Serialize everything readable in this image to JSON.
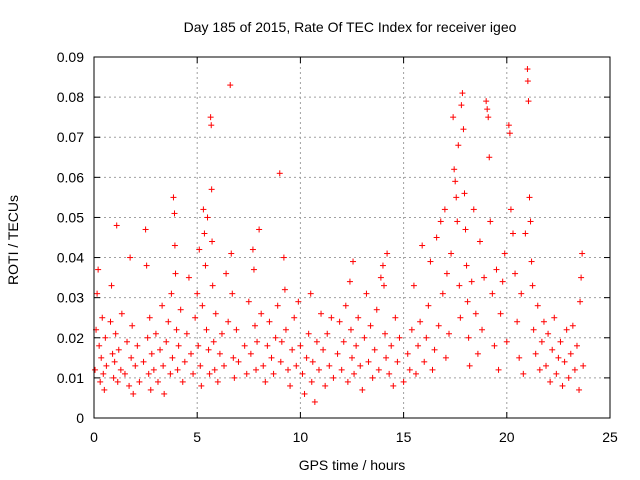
{
  "chart_data": {
    "type": "scatter",
    "title": "Day 185 of 2015, Rate Of TEC Index for receiver igeo",
    "xlabel": "GPS time / hours",
    "ylabel": "ROTI / TECUs",
    "xlim": [
      0,
      25
    ],
    "ylim": [
      0,
      0.09
    ],
    "xticks": [
      0,
      5,
      10,
      15,
      20,
      25
    ],
    "xtick_labels": [
      "0",
      "5",
      "10",
      "15",
      "20",
      "25"
    ],
    "yticks": [
      0,
      0.01,
      0.02,
      0.03,
      0.04,
      0.05,
      0.06,
      0.07,
      0.08,
      0.09
    ],
    "ytick_labels": [
      "0",
      "0.01",
      "0.02",
      "0.03",
      "0.04",
      "0.05",
      "0.06",
      "0.07",
      "0.08",
      "0.09"
    ],
    "grid": true,
    "marker": "+",
    "color": "#ff0000",
    "series": [
      {
        "name": "ROTI",
        "points": [
          [
            0.05,
            0.012
          ],
          [
            0.1,
            0.022
          ],
          [
            0.15,
            0.031
          ],
          [
            0.2,
            0.037
          ],
          [
            0.25,
            0.018
          ],
          [
            0.3,
            0.009
          ],
          [
            0.35,
            0.015
          ],
          [
            0.4,
            0.025
          ],
          [
            0.45,
            0.011
          ],
          [
            0.5,
            0.007
          ],
          [
            0.55,
            0.02
          ],
          [
            0.6,
            0.013
          ],
          [
            0.8,
            0.024
          ],
          [
            0.85,
            0.033
          ],
          [
            0.9,
            0.016
          ],
          [
            0.95,
            0.01
          ],
          [
            1.0,
            0.014
          ],
          [
            1.05,
            0.021
          ],
          [
            1.1,
            0.048
          ],
          [
            1.15,
            0.009
          ],
          [
            1.2,
            0.017
          ],
          [
            1.3,
            0.012
          ],
          [
            1.35,
            0.026
          ],
          [
            1.5,
            0.011
          ],
          [
            1.6,
            0.019
          ],
          [
            1.7,
            0.008
          ],
          [
            1.75,
            0.04
          ],
          [
            1.8,
            0.015
          ],
          [
            1.85,
            0.023
          ],
          [
            1.9,
            0.006
          ],
          [
            2.0,
            0.013
          ],
          [
            2.1,
            0.018
          ],
          [
            2.2,
            0.009
          ],
          [
            2.4,
            0.014
          ],
          [
            2.5,
            0.047
          ],
          [
            2.55,
            0.038
          ],
          [
            2.6,
            0.02
          ],
          [
            2.65,
            0.011
          ],
          [
            2.7,
            0.025
          ],
          [
            2.75,
            0.007
          ],
          [
            2.8,
            0.016
          ],
          [
            2.9,
            0.012
          ],
          [
            3.0,
            0.021
          ],
          [
            3.1,
            0.009
          ],
          [
            3.2,
            0.017
          ],
          [
            3.3,
            0.028
          ],
          [
            3.35,
            0.013
          ],
          [
            3.4,
            0.006
          ],
          [
            3.5,
            0.019
          ],
          [
            3.6,
            0.024
          ],
          [
            3.7,
            0.011
          ],
          [
            3.75,
            0.031
          ],
          [
            3.8,
            0.015
          ],
          [
            3.85,
            0.055
          ],
          [
            3.9,
            0.051
          ],
          [
            3.92,
            0.043
          ],
          [
            3.95,
            0.036
          ],
          [
            4.0,
            0.022
          ],
          [
            4.05,
            0.012
          ],
          [
            4.1,
            0.018
          ],
          [
            4.2,
            0.027
          ],
          [
            4.3,
            0.009
          ],
          [
            4.4,
            0.014
          ],
          [
            4.5,
            0.021
          ],
          [
            4.6,
            0.035
          ],
          [
            4.7,
            0.016
          ],
          [
            4.8,
            0.011
          ],
          [
            4.9,
            0.025
          ],
          [
            5.0,
            0.031
          ],
          [
            5.05,
            0.018
          ],
          [
            5.1,
            0.042
          ],
          [
            5.15,
            0.013
          ],
          [
            5.2,
            0.008
          ],
          [
            5.25,
            0.028
          ],
          [
            5.3,
            0.052
          ],
          [
            5.35,
            0.046
          ],
          [
            5.4,
            0.038
          ],
          [
            5.45,
            0.022
          ],
          [
            5.5,
            0.05
          ],
          [
            5.55,
            0.017
          ],
          [
            5.6,
            0.011
          ],
          [
            5.65,
            0.075
          ],
          [
            5.68,
            0.073
          ],
          [
            5.7,
            0.057
          ],
          [
            5.72,
            0.044
          ],
          [
            5.75,
            0.033
          ],
          [
            5.8,
            0.019
          ],
          [
            5.85,
            0.012
          ],
          [
            5.9,
            0.026
          ],
          [
            6.0,
            0.009
          ],
          [
            6.1,
            0.016
          ],
          [
            6.2,
            0.021
          ],
          [
            6.3,
            0.013
          ],
          [
            6.4,
            0.036
          ],
          [
            6.5,
            0.024
          ],
          [
            6.6,
            0.083
          ],
          [
            6.65,
            0.041
          ],
          [
            6.7,
            0.031
          ],
          [
            6.75,
            0.015
          ],
          [
            6.8,
            0.01
          ],
          [
            6.9,
            0.022
          ],
          [
            7.0,
            0.014
          ],
          [
            7.3,
            0.018
          ],
          [
            7.4,
            0.011
          ],
          [
            7.5,
            0.029
          ],
          [
            7.6,
            0.016
          ],
          [
            7.7,
            0.042
          ],
          [
            7.75,
            0.037
          ],
          [
            7.8,
            0.023
          ],
          [
            7.85,
            0.012
          ],
          [
            7.9,
            0.019
          ],
          [
            8.0,
            0.047
          ],
          [
            8.1,
            0.026
          ],
          [
            8.2,
            0.013
          ],
          [
            8.3,
            0.009
          ],
          [
            8.4,
            0.018
          ],
          [
            8.5,
            0.024
          ],
          [
            8.6,
            0.015
          ],
          [
            8.7,
            0.011
          ],
          [
            8.8,
            0.02
          ],
          [
            8.9,
            0.028
          ],
          [
            9.0,
            0.061
          ],
          [
            9.05,
            0.014
          ],
          [
            9.1,
            0.019
          ],
          [
            9.2,
            0.04
          ],
          [
            9.25,
            0.032
          ],
          [
            9.3,
            0.022
          ],
          [
            9.4,
            0.012
          ],
          [
            9.5,
            0.008
          ],
          [
            9.6,
            0.017
          ],
          [
            9.7,
            0.025
          ],
          [
            9.8,
            0.013
          ],
          [
            9.9,
            0.029
          ],
          [
            10.0,
            0.018
          ],
          [
            10.1,
            0.011
          ],
          [
            10.2,
            0.006
          ],
          [
            10.3,
            0.015
          ],
          [
            10.4,
            0.021
          ],
          [
            10.5,
            0.031
          ],
          [
            10.55,
            0.009
          ],
          [
            10.6,
            0.014
          ],
          [
            10.7,
            0.004
          ],
          [
            10.8,
            0.019
          ],
          [
            10.9,
            0.012
          ],
          [
            11.0,
            0.026
          ],
          [
            11.1,
            0.017
          ],
          [
            11.2,
            0.008
          ],
          [
            11.3,
            0.021
          ],
          [
            11.4,
            0.013
          ],
          [
            11.5,
            0.025
          ],
          [
            11.6,
            0.01
          ],
          [
            11.8,
            0.016
          ],
          [
            11.9,
            0.024
          ],
          [
            12.0,
            0.012
          ],
          [
            12.1,
            0.019
          ],
          [
            12.2,
            0.028
          ],
          [
            12.3,
            0.009
          ],
          [
            12.4,
            0.034
          ],
          [
            12.45,
            0.022
          ],
          [
            12.5,
            0.015
          ],
          [
            12.55,
            0.039
          ],
          [
            12.6,
            0.011
          ],
          [
            12.7,
            0.018
          ],
          [
            12.8,
            0.025
          ],
          [
            12.9,
            0.013
          ],
          [
            13.0,
            0.007
          ],
          [
            13.1,
            0.02
          ],
          [
            13.2,
            0.031
          ],
          [
            13.3,
            0.014
          ],
          [
            13.4,
            0.023
          ],
          [
            13.5,
            0.01
          ],
          [
            13.6,
            0.017
          ],
          [
            13.7,
            0.027
          ],
          [
            13.8,
            0.012
          ],
          [
            13.9,
            0.035
          ],
          [
            14.0,
            0.038
          ],
          [
            14.05,
            0.033
          ],
          [
            14.1,
            0.021
          ],
          [
            14.15,
            0.015
          ],
          [
            14.2,
            0.041
          ],
          [
            14.3,
            0.011
          ],
          [
            14.4,
            0.018
          ],
          [
            14.5,
            0.008
          ],
          [
            14.6,
            0.025
          ],
          [
            14.7,
            0.014
          ],
          [
            14.8,
            0.02
          ],
          [
            15.0,
            0.009
          ],
          [
            15.2,
            0.016
          ],
          [
            15.3,
            0.012
          ],
          [
            15.4,
            0.022
          ],
          [
            15.5,
            0.033
          ],
          [
            15.6,
            0.011
          ],
          [
            15.7,
            0.018
          ],
          [
            15.8,
            0.024
          ],
          [
            15.9,
            0.043
          ],
          [
            16.0,
            0.014
          ],
          [
            16.1,
            0.02
          ],
          [
            16.2,
            0.028
          ],
          [
            16.3,
            0.039
          ],
          [
            16.4,
            0.012
          ],
          [
            16.5,
            0.017
          ],
          [
            16.6,
            0.045
          ],
          [
            16.7,
            0.023
          ],
          [
            16.8,
            0.049
          ],
          [
            16.9,
            0.031
          ],
          [
            17.0,
            0.052
          ],
          [
            17.05,
            0.015
          ],
          [
            17.1,
            0.036
          ],
          [
            17.2,
            0.021
          ],
          [
            17.3,
            0.041
          ],
          [
            17.4,
            0.075
          ],
          [
            17.45,
            0.062
          ],
          [
            17.5,
            0.059
          ],
          [
            17.55,
            0.055
          ],
          [
            17.6,
            0.049
          ],
          [
            17.65,
            0.068
          ],
          [
            17.7,
            0.033
          ],
          [
            17.75,
            0.025
          ],
          [
            17.8,
            0.078
          ],
          [
            17.85,
            0.081
          ],
          [
            17.9,
            0.072
          ],
          [
            17.95,
            0.056
          ],
          [
            18.0,
            0.047
          ],
          [
            18.05,
            0.038
          ],
          [
            18.1,
            0.029
          ],
          [
            18.15,
            0.02
          ],
          [
            18.2,
            0.013
          ],
          [
            18.3,
            0.034
          ],
          [
            18.4,
            0.052
          ],
          [
            18.5,
            0.026
          ],
          [
            18.6,
            0.016
          ],
          [
            18.7,
            0.044
          ],
          [
            18.8,
            0.022
          ],
          [
            18.9,
            0.035
          ],
          [
            19.0,
            0.079
          ],
          [
            19.05,
            0.077
          ],
          [
            19.1,
            0.075
          ],
          [
            19.15,
            0.065
          ],
          [
            19.2,
            0.049
          ],
          [
            19.3,
            0.031
          ],
          [
            19.4,
            0.018
          ],
          [
            19.5,
            0.037
          ],
          [
            19.6,
            0.012
          ],
          [
            19.7,
            0.026
          ],
          [
            19.8,
            0.034
          ],
          [
            19.9,
            0.041
          ],
          [
            20.0,
            0.019
          ],
          [
            20.1,
            0.073
          ],
          [
            20.15,
            0.071
          ],
          [
            20.2,
            0.052
          ],
          [
            20.3,
            0.046
          ],
          [
            20.4,
            0.036
          ],
          [
            20.5,
            0.024
          ],
          [
            20.6,
            0.015
          ],
          [
            20.7,
            0.031
          ],
          [
            20.8,
            0.011
          ],
          [
            20.9,
            0.046
          ],
          [
            21.0,
            0.087
          ],
          [
            21.02,
            0.084
          ],
          [
            21.05,
            0.079
          ],
          [
            21.1,
            0.055
          ],
          [
            21.15,
            0.049
          ],
          [
            21.2,
            0.039
          ],
          [
            21.25,
            0.033
          ],
          [
            21.3,
            0.022
          ],
          [
            21.4,
            0.016
          ],
          [
            21.5,
            0.028
          ],
          [
            21.6,
            0.012
          ],
          [
            21.7,
            0.019
          ],
          [
            21.8,
            0.024
          ],
          [
            21.9,
            0.013
          ],
          [
            22.0,
            0.021
          ],
          [
            22.1,
            0.009
          ],
          [
            22.2,
            0.017
          ],
          [
            22.3,
            0.025
          ],
          [
            22.4,
            0.011
          ],
          [
            22.5,
            0.015
          ],
          [
            22.6,
            0.019
          ],
          [
            22.7,
            0.008
          ],
          [
            22.8,
            0.014
          ],
          [
            22.9,
            0.022
          ],
          [
            23.0,
            0.01
          ],
          [
            23.1,
            0.016
          ],
          [
            23.2,
            0.023
          ],
          [
            23.3,
            0.012
          ],
          [
            23.4,
            0.018
          ],
          [
            23.5,
            0.007
          ],
          [
            23.55,
            0.029
          ],
          [
            23.6,
            0.035
          ],
          [
            23.65,
            0.041
          ],
          [
            23.7,
            0.013
          ]
        ]
      }
    ]
  }
}
